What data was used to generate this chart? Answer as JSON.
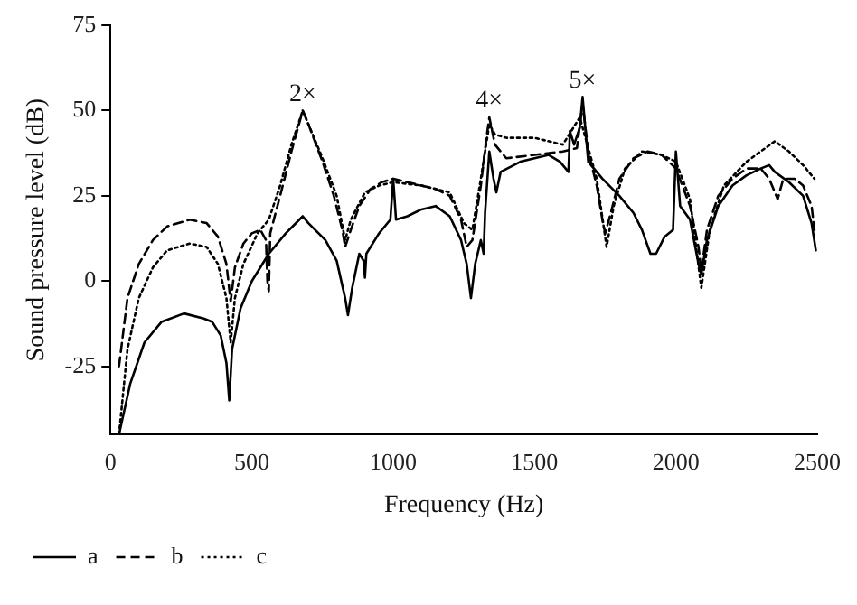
{
  "chart_data": {
    "type": "line",
    "xlabel": "Frequency (Hz)",
    "ylabel": "Sound pressure level (dB)",
    "xlim": [
      0,
      2500
    ],
    "xticks": [
      0,
      500,
      1000,
      1500,
      2000,
      2500
    ],
    "ylim": [
      -45,
      75
    ],
    "yticks": [
      -25,
      0,
      25,
      50,
      75
    ],
    "grid": false,
    "legend": "bottom left",
    "marker": "none",
    "annotations": [
      {
        "text": "2×",
        "x": 680,
        "y": 50
      },
      {
        "text": "4×",
        "x": 1340,
        "y": 48
      },
      {
        "text": "5×",
        "x": 1670,
        "y": 54
      }
    ],
    "series": [
      {
        "name": "a",
        "color": "#000000",
        "line_style": "solid",
        "x": [
          30,
          70,
          120,
          180,
          260,
          330,
          360,
          390,
          410,
          420,
          430,
          460,
          500,
          560,
          620,
          680,
          700,
          760,
          800,
          830,
          840,
          855,
          880,
          895,
          900,
          905,
          950,
          990,
          1000,
          1010,
          1050,
          1100,
          1150,
          1200,
          1240,
          1260,
          1275,
          1290,
          1310,
          1320,
          1325,
          1340,
          1355,
          1365,
          1380,
          1450,
          1550,
          1590,
          1620,
          1625,
          1640,
          1660,
          1670,
          1690,
          1740,
          1800,
          1850,
          1880,
          1910,
          1930,
          1960,
          1990,
          2000,
          2015,
          2050,
          2080,
          2090,
          2110,
          2150,
          2200,
          2250,
          2300,
          2330,
          2350,
          2400,
          2450,
          2480,
          2495
        ],
        "values": [
          -45,
          -30,
          -18,
          -12,
          -9.5,
          -11,
          -12,
          -16,
          -24,
          -35,
          -20,
          -8,
          0,
          8,
          14,
          19,
          17,
          12,
          6,
          -5,
          -10,
          -2,
          8,
          6,
          1,
          8,
          14,
          18,
          30,
          18,
          19,
          21,
          22,
          19,
          12,
          5,
          -5,
          5,
          12,
          8,
          20,
          38,
          30,
          26,
          32,
          35,
          37,
          35,
          32,
          44,
          40,
          45,
          54,
          35,
          30,
          25,
          20,
          15,
          8,
          8,
          13,
          15,
          38,
          22,
          18,
          5,
          2,
          12,
          22,
          28,
          31,
          33,
          34,
          32,
          29,
          25,
          17,
          9
        ]
      },
      {
        "name": "b",
        "color": "#000000",
        "line_style": "dashed",
        "x": [
          30,
          60,
          100,
          150,
          200,
          280,
          340,
          380,
          410,
          425,
          440,
          470,
          500,
          530,
          550,
          555,
          560,
          565,
          600,
          640,
          680,
          700,
          750,
          790,
          820,
          830,
          850,
          880,
          920,
          960,
          1000,
          1050,
          1100,
          1150,
          1200,
          1240,
          1260,
          1280,
          1310,
          1330,
          1340,
          1360,
          1400,
          1500,
          1600,
          1650,
          1670,
          1690,
          1720,
          1740,
          1750,
          1770,
          1800,
          1850,
          1900,
          1950,
          2000,
          2050,
          2080,
          2090,
          2110,
          2150,
          2200,
          2250,
          2300,
          2330,
          2360,
          2380,
          2420,
          2450,
          2480,
          2490
        ],
        "values": [
          -25,
          -5,
          5,
          12,
          16,
          18,
          17,
          13,
          5,
          -6,
          4,
          11,
          14,
          15,
          12,
          0,
          -3,
          14,
          25,
          38,
          50,
          46,
          35,
          25,
          15,
          10,
          15,
          22,
          27,
          29,
          30,
          29,
          28,
          27,
          25,
          18,
          10,
          12,
          28,
          42,
          48,
          40,
          36,
          37,
          38,
          39,
          52,
          38,
          28,
          18,
          14,
          20,
          30,
          36,
          38,
          37,
          33,
          22,
          10,
          3,
          15,
          25,
          30,
          33,
          33,
          30,
          24,
          30,
          30,
          28,
          22,
          15
        ]
      },
      {
        "name": "c",
        "color": "#000000",
        "line_style": "dotted",
        "x": [
          30,
          60,
          100,
          150,
          200,
          280,
          340,
          380,
          410,
          425,
          440,
          470,
          520,
          560,
          600,
          640,
          680,
          700,
          750,
          800,
          830,
          850,
          900,
          950,
          1000,
          1100,
          1200,
          1250,
          1280,
          1310,
          1340,
          1360,
          1400,
          1500,
          1600,
          1660,
          1680,
          1720,
          1755,
          1780,
          1820,
          1880,
          1950,
          2000,
          2050,
          2090,
          2120,
          2170,
          2250,
          2300,
          2350,
          2400,
          2450,
          2490
        ],
        "values": [
          -45,
          -20,
          -5,
          4,
          9,
          11,
          10,
          5,
          -5,
          -18,
          -5,
          5,
          14,
          18,
          28,
          40,
          50,
          46,
          36,
          25,
          12,
          18,
          26,
          28,
          29,
          28,
          26,
          17,
          15,
          30,
          46,
          43,
          42,
          42,
          40,
          48,
          42,
          30,
          10,
          22,
          33,
          38,
          37,
          35,
          24,
          -2,
          15,
          28,
          35,
          38,
          41,
          38,
          34,
          30
        ]
      }
    ]
  }
}
